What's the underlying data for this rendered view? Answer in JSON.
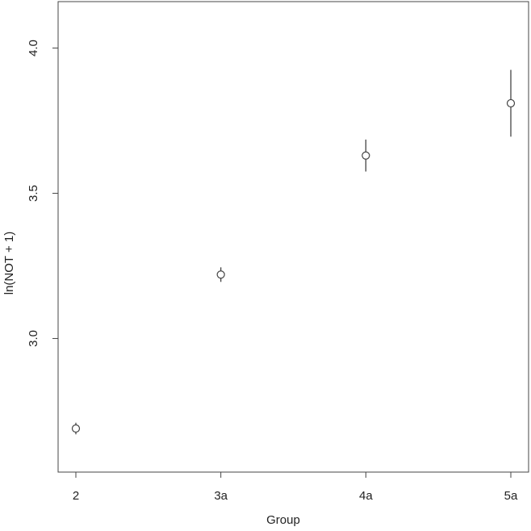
{
  "chart_data": {
    "type": "errorbar",
    "x_label": "Group",
    "y_label": "ln(NOT + 1)",
    "categories": [
      "2",
      "3a",
      "4a",
      "5a"
    ],
    "values": [
      2.69,
      3.22,
      3.63,
      3.81
    ],
    "errors": [
      0.02,
      0.025,
      0.055,
      0.115
    ],
    "color": "#444444",
    "ylim": [
      2.54,
      4.16
    ],
    "yticks": [
      {
        "value": 3,
        "label": "3.0"
      },
      {
        "value": 3.5,
        "label": "3.5"
      },
      {
        "value": 4,
        "label": "4.0"
      }
    ]
  }
}
